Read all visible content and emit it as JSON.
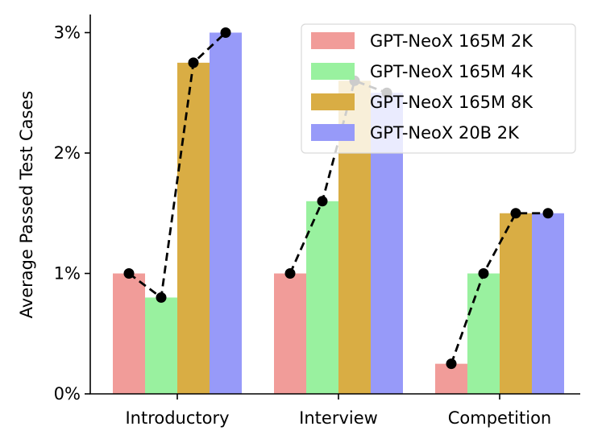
{
  "chart_data": {
    "type": "bar",
    "title": "",
    "xlabel": "",
    "ylabel": "Average Passed Test Cases",
    "ylim": [
      0,
      3.15
    ],
    "yticks": [
      {
        "value": 0,
        "label": "0%"
      },
      {
        "value": 1,
        "label": "1%"
      },
      {
        "value": 2,
        "label": "2%"
      },
      {
        "value": 3,
        "label": "3%"
      }
    ],
    "categories": [
      "Introductory",
      "Interview",
      "Competition"
    ],
    "series": [
      {
        "name": "GPT-NeoX 165M 2K",
        "color": "#f19c99",
        "values": [
          1.0,
          1.0,
          0.25
        ]
      },
      {
        "name": "GPT-NeoX 165M 4K",
        "color": "#99f19f",
        "values": [
          0.8,
          1.6,
          1.0
        ]
      },
      {
        "name": "GPT-NeoX 165M 8K",
        "color": "#d9ad44",
        "values": [
          2.75,
          2.6,
          1.5
        ]
      },
      {
        "name": "GPT-NeoX 20B 2K",
        "color": "#979af9",
        "values": [
          3.0,
          2.5,
          1.5
        ]
      }
    ],
    "overlay_line": {
      "style": "dashed",
      "marker": "circle",
      "color": "#000000"
    },
    "grid": false,
    "legend": "top-right"
  }
}
